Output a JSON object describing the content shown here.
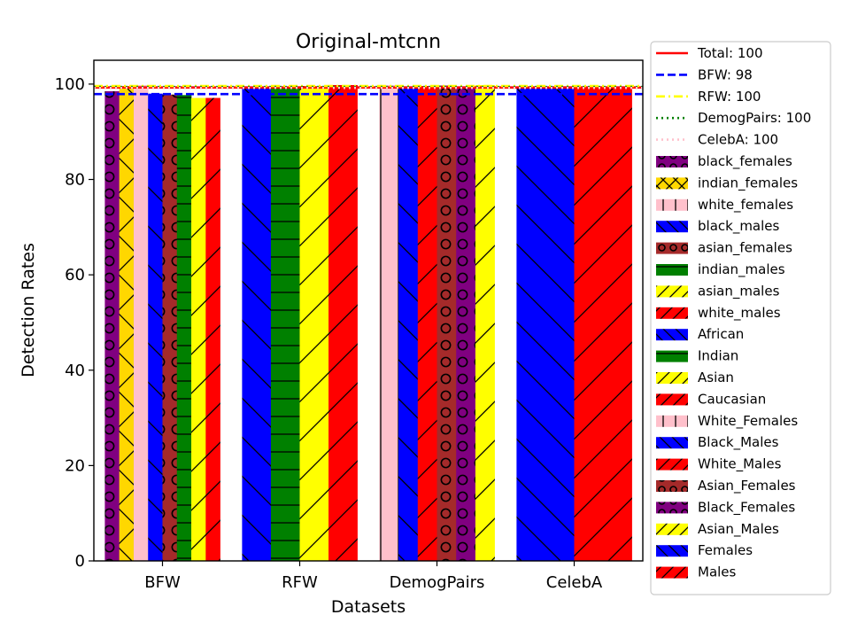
{
  "chart_data": {
    "type": "bar",
    "title": "Original-mtcnn",
    "xlabel": "Datasets",
    "ylabel": "Detection Rates",
    "ylim": [
      0,
      105
    ],
    "yticks": [
      0,
      20,
      40,
      60,
      80,
      100
    ],
    "categories": [
      "BFW",
      "RFW",
      "DemogPairs",
      "CelebA"
    ],
    "grid": false,
    "legend_position": "outside-right",
    "reference_lines": [
      {
        "label": "Total: 100",
        "value": 99.3,
        "color": "#ff0000",
        "style": "solid"
      },
      {
        "label": "BFW: 98",
        "value": 97.9,
        "color": "#0000ff",
        "style": "dashed"
      },
      {
        "label": "RFW: 100",
        "value": 99.6,
        "color": "#ffff00",
        "style": "dashdot"
      },
      {
        "label": "DemogPairs: 100",
        "value": 99.4,
        "color": "#008000",
        "style": "dotted"
      },
      {
        "label": "CelebA: 100",
        "value": 99.2,
        "color": "#ffc0cb",
        "style": "dotted"
      }
    ],
    "groups": [
      {
        "category": "BFW",
        "bars": [
          {
            "series": "black_females",
            "value": 98.5
          },
          {
            "series": "indian_females",
            "value": 99.6
          },
          {
            "series": "white_females",
            "value": 99.8
          },
          {
            "series": "black_males",
            "value": 98.0
          },
          {
            "series": "asian_females",
            "value": 97.8
          },
          {
            "series": "indian_males",
            "value": 97.7
          },
          {
            "series": "asian_males",
            "value": 97.1
          },
          {
            "series": "white_males",
            "value": 97.1
          }
        ]
      },
      {
        "category": "RFW",
        "bars": [
          {
            "series": "African",
            "value": 99.2
          },
          {
            "series": "Indian",
            "value": 99.5
          },
          {
            "series": "Asian",
            "value": 99.6
          },
          {
            "series": "Caucasian",
            "value": 99.8
          }
        ]
      },
      {
        "category": "DemogPairs",
        "bars": [
          {
            "series": "White_Females",
            "value": 99.8
          },
          {
            "series": "Black_Males",
            "value": 99.4
          },
          {
            "series": "White_Males",
            "value": 99.6
          },
          {
            "series": "Asian_Females",
            "value": 99.7
          },
          {
            "series": "Black_Females",
            "value": 99.3
          },
          {
            "series": "Asian_Males",
            "value": 99.8
          }
        ]
      },
      {
        "category": "CelebA",
        "bars": [
          {
            "series": "Females",
            "value": 99.2
          },
          {
            "series": "Males",
            "value": 99.1
          }
        ]
      }
    ],
    "series_styles": {
      "black_females": {
        "color": "#800080",
        "hatch": "circles"
      },
      "indian_females": {
        "color": "#ffd700",
        "hatch": "cross"
      },
      "white_females": {
        "color": "#ffc0cb",
        "hatch": "vline"
      },
      "black_males": {
        "color": "#0000ff",
        "hatch": "back"
      },
      "asian_females": {
        "color": "#a52a2a",
        "hatch": "circles"
      },
      "indian_males": {
        "color": "#008000",
        "hatch": "hline"
      },
      "asian_males": {
        "color": "#ffff00",
        "hatch": "fwd"
      },
      "white_males": {
        "color": "#ff0000",
        "hatch": "fwd"
      },
      "African": {
        "color": "#0000ff",
        "hatch": "back"
      },
      "Indian": {
        "color": "#008000",
        "hatch": "hline"
      },
      "Asian": {
        "color": "#ffff00",
        "hatch": "fwd"
      },
      "Caucasian": {
        "color": "#ff0000",
        "hatch": "fwd"
      },
      "White_Females": {
        "color": "#ffc0cb",
        "hatch": "vline"
      },
      "Black_Males": {
        "color": "#0000ff",
        "hatch": "back"
      },
      "White_Males": {
        "color": "#ff0000",
        "hatch": "fwd"
      },
      "Asian_Females": {
        "color": "#a52a2a",
        "hatch": "circles"
      },
      "Black_Females": {
        "color": "#800080",
        "hatch": "circles"
      },
      "Asian_Males": {
        "color": "#ffff00",
        "hatch": "fwd"
      },
      "Females": {
        "color": "#0000ff",
        "hatch": "back"
      },
      "Males": {
        "color": "#ff0000",
        "hatch": "fwd"
      }
    },
    "legend": [
      {
        "label": "Total: 100",
        "kind": "line",
        "color": "#ff0000",
        "style": "solid"
      },
      {
        "label": "BFW: 98",
        "kind": "line",
        "color": "#0000ff",
        "style": "dashed"
      },
      {
        "label": "RFW: 100",
        "kind": "line",
        "color": "#ffff00",
        "style": "dashdot"
      },
      {
        "label": "DemogPairs: 100",
        "kind": "line",
        "color": "#008000",
        "style": "dotted"
      },
      {
        "label": "CelebA: 100",
        "kind": "line",
        "color": "#ffc0cb",
        "style": "dotted"
      },
      {
        "label": "black_females",
        "kind": "patch",
        "series": "black_females"
      },
      {
        "label": "indian_females",
        "kind": "patch",
        "series": "indian_females"
      },
      {
        "label": "white_females",
        "kind": "patch",
        "series": "white_females"
      },
      {
        "label": "black_males",
        "kind": "patch",
        "series": "black_males"
      },
      {
        "label": "asian_females",
        "kind": "patch",
        "series": "asian_females"
      },
      {
        "label": "indian_males",
        "kind": "patch",
        "series": "indian_males"
      },
      {
        "label": "asian_males",
        "kind": "patch",
        "series": "asian_males"
      },
      {
        "label": "white_males",
        "kind": "patch",
        "series": "white_males"
      },
      {
        "label": "African",
        "kind": "patch",
        "series": "African"
      },
      {
        "label": "Indian",
        "kind": "patch",
        "series": "Indian"
      },
      {
        "label": "Asian",
        "kind": "patch",
        "series": "Asian"
      },
      {
        "label": "Caucasian",
        "kind": "patch",
        "series": "Caucasian"
      },
      {
        "label": "White_Females",
        "kind": "patch",
        "series": "White_Females"
      },
      {
        "label": "Black_Males",
        "kind": "patch",
        "series": "Black_Males"
      },
      {
        "label": "White_Males",
        "kind": "patch",
        "series": "White_Males"
      },
      {
        "label": "Asian_Females",
        "kind": "patch",
        "series": "Asian_Females"
      },
      {
        "label": "Black_Females",
        "kind": "patch",
        "series": "Black_Females"
      },
      {
        "label": "Asian_Males",
        "kind": "patch",
        "series": "Asian_Males"
      },
      {
        "label": "Females",
        "kind": "patch",
        "series": "Females"
      },
      {
        "label": "Males",
        "kind": "patch",
        "series": "Males"
      }
    ]
  }
}
